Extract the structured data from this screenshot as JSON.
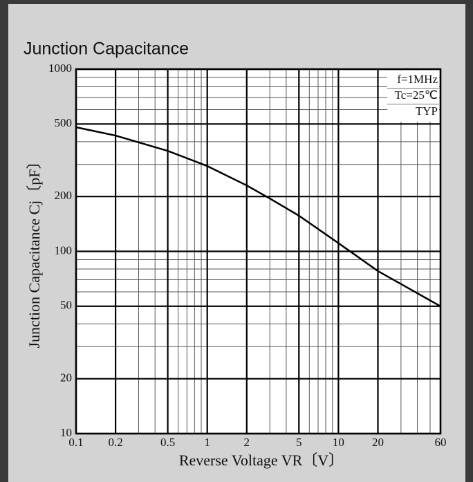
{
  "chart_data": {
    "type": "line",
    "title": "Junction Capacitance",
    "x_label": "Reverse Voltage VR〔V〕",
    "y_label": "Junction Capacitance Cj〔pF〕",
    "annotations": [
      "f=1MHz",
      "Tc=25℃",
      "TYP"
    ],
    "xscale": "log",
    "yscale": "log",
    "grid": true,
    "xlim": [
      0.1,
      60
    ],
    "ylim": [
      10,
      1000
    ],
    "xticks": [
      0.1,
      0.2,
      0.5,
      1,
      2,
      5,
      10,
      20,
      60
    ],
    "yticks": [
      10,
      20,
      50,
      100,
      200,
      500,
      1000
    ],
    "xminor": [
      0.3,
      0.4,
      0.6,
      0.7,
      0.8,
      0.9,
      3,
      4,
      6,
      7,
      8,
      9,
      30,
      40,
      50
    ],
    "yminor": [
      30,
      40,
      60,
      70,
      80,
      90,
      300,
      400,
      600,
      700,
      800,
      900
    ],
    "x": [
      0.1,
      0.2,
      0.5,
      1,
      2,
      3,
      5,
      10,
      20,
      60
    ],
    "series": [
      {
        "name": "TYP",
        "color": "#000000",
        "values": [
          480,
          432,
          356,
          294,
          230,
          195,
          157,
          111,
          78,
          50
        ]
      }
    ]
  }
}
